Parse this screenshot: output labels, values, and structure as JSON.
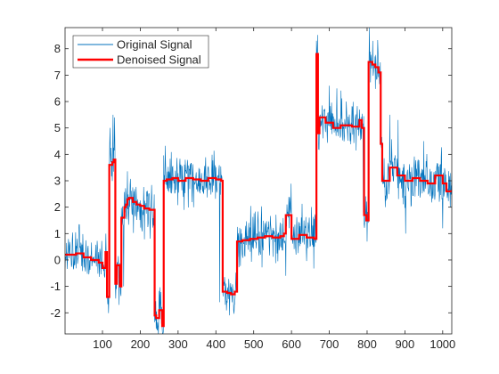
{
  "chart_data": {
    "type": "line",
    "title": "",
    "xlabel": "",
    "ylabel": "",
    "xlim": [
      1,
      1024
    ],
    "ylim": [
      -2.8,
      8.8
    ],
    "xticks": [
      100,
      200,
      300,
      400,
      500,
      600,
      700,
      800,
      900,
      1000
    ],
    "yticks": [
      -2,
      -1,
      0,
      1,
      2,
      3,
      4,
      5,
      6,
      7,
      8
    ],
    "grid": false,
    "legend": {
      "position": "top-left",
      "entries": [
        "Original Signal",
        "Denoised Signal"
      ]
    },
    "colors": {
      "original": "#0072BD",
      "denoised": "#FF0000",
      "axes": "#262626"
    },
    "series": [
      {
        "name": "Original Signal",
        "style": "noisy",
        "noise_std": 0.45,
        "n_points": 1024,
        "spikes": [
          [
            120,
            5.0
          ],
          [
            128,
            5.5
          ],
          [
            132,
            5.4
          ],
          [
            144,
            -1.7
          ],
          [
            156,
            -1.0
          ],
          [
            240,
            -2.3
          ],
          [
            258,
            -2.6
          ],
          [
            410,
            -1.6
          ],
          [
            520,
            1.6
          ],
          [
            585,
            -0.6
          ],
          [
            597,
            1.9
          ],
          [
            612,
            0.2
          ],
          [
            700,
            6.6
          ],
          [
            720,
            6.5
          ],
          [
            745,
            6.0
          ],
          [
            790,
            1.8
          ],
          [
            800,
            0.7
          ],
          [
            806,
            8.8
          ],
          [
            815,
            8.3
          ],
          [
            848,
            2.0
          ],
          [
            860,
            5.5
          ],
          [
            882,
            5.3
          ],
          [
            902,
            1.0
          ],
          [
            950,
            4.5
          ],
          [
            1000,
            1.2
          ]
        ]
      },
      {
        "name": "Denoised Signal",
        "style": "step",
        "x": [
          1,
          30,
          50,
          70,
          90,
          100,
          108,
          112,
          118,
          126,
          130,
          134,
          138,
          146,
          150,
          158,
          162,
          166,
          170,
          180,
          190,
          200,
          210,
          224,
          238,
          242,
          250,
          258,
          262,
          270,
          285,
          300,
          320,
          340,
          360,
          380,
          400,
          414,
          418,
          430,
          440,
          450,
          456,
          470,
          490,
          510,
          530,
          550,
          570,
          580,
          585,
          600,
          620,
          640,
          660,
          666,
          670,
          674,
          690,
          710,
          730,
          760,
          780,
          786,
          792,
          798,
          804,
          814,
          822,
          830,
          836,
          840,
          860,
          880,
          900,
          920,
          940,
          960,
          980,
          1000,
          1010,
          1024
        ],
        "y": [
          0.2,
          0.25,
          0.1,
          0.0,
          -0.1,
          -0.3,
          0.3,
          -1.4,
          3.6,
          3.7,
          3.8,
          -0.9,
          -0.2,
          -1.0,
          1.6,
          2.0,
          2.1,
          2.3,
          2.35,
          2.2,
          2.1,
          2.05,
          1.95,
          1.9,
          -2.1,
          -2.2,
          -1.9,
          -2.5,
          3.0,
          3.05,
          3.1,
          3.0,
          3.1,
          3.05,
          3.0,
          3.1,
          3.05,
          3.0,
          -1.2,
          -1.25,
          -1.3,
          -1.2,
          0.7,
          0.75,
          0.8,
          0.85,
          0.9,
          0.85,
          0.9,
          1.0,
          1.7,
          0.8,
          0.95,
          0.85,
          0.8,
          7.8,
          4.8,
          5.4,
          5.2,
          5.0,
          5.1,
          5.05,
          5.3,
          5.0,
          1.7,
          1.5,
          7.5,
          7.4,
          7.3,
          7.1,
          4.4,
          3.0,
          3.5,
          3.2,
          3.0,
          3.1,
          3.0,
          2.9,
          3.2,
          2.9,
          2.6,
          2.65
        ]
      }
    ]
  }
}
